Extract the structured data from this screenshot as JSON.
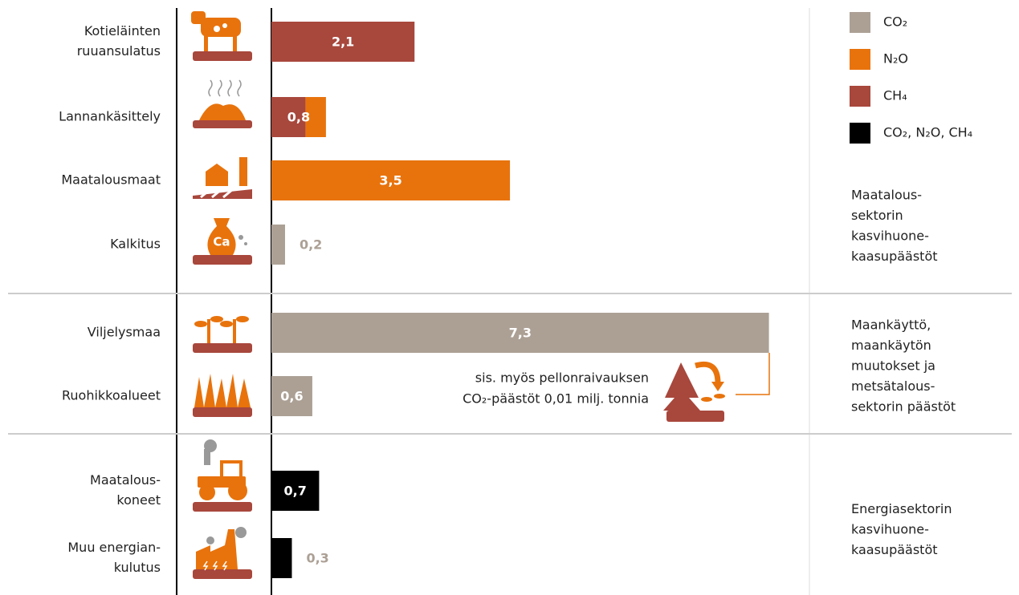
{
  "chart_data": {
    "type": "stacked_bar_horizontal",
    "categories": [
      [
        "Kotieläinten",
        "ruuansulatus"
      ],
      [
        "Lannankäsittely"
      ],
      [
        "Maatalousmaat"
      ],
      [
        "Kalkitus"
      ],
      [
        "Viljelysmaa"
      ],
      [
        "Ruohikkoalueet"
      ],
      [
        "Maatalous-",
        "koneet"
      ],
      [
        "Muu energian-",
        "kulutus"
      ]
    ],
    "series": [
      {
        "name": "CO₂",
        "color": "#aca095",
        "values": [
          null,
          null,
          null,
          0.2,
          7.3,
          0.6,
          null,
          null
        ]
      },
      {
        "name": "N₂O",
        "color": "#e8730c",
        "values": [
          null,
          0.3,
          3.5,
          null,
          null,
          null,
          null,
          null
        ]
      },
      {
        "name": "CH₄",
        "color": "#a8473c",
        "values": [
          2.1,
          0.5,
          null,
          null,
          null,
          null,
          null,
          null
        ]
      },
      {
        "name": "CO₂, N₂O, CH₄",
        "color": "#000000",
        "values": [
          null,
          null,
          null,
          null,
          null,
          null,
          0.7,
          0.3
        ]
      }
    ],
    "totals": [
      2.1,
      0.8,
      3.5,
      0.2,
      7.3,
      0.6,
      0.7,
      0.3
    ],
    "total_labels": [
      "2,1",
      "0,8",
      "3,5",
      "0,2",
      "7,3",
      "0,6",
      "0,7",
      "0,3"
    ],
    "xlim": [
      0,
      8
    ],
    "groups": [
      [
        "Maatalous-",
        "sektorin",
        "kasvihuone-",
        "kaasupäästöt"
      ],
      [
        "Maankäyttö,",
        "maankäytön",
        "muutokset ja",
        "metsätalous-",
        "sektorin päästöt"
      ],
      [
        "Energiasektorin",
        "kasvihuone-",
        "kaasupäästöt"
      ]
    ],
    "annotation": [
      "sis. myös  pellonraivauksen",
      "CO₂-päästöt 0,01 milj. tonnia"
    ]
  }
}
